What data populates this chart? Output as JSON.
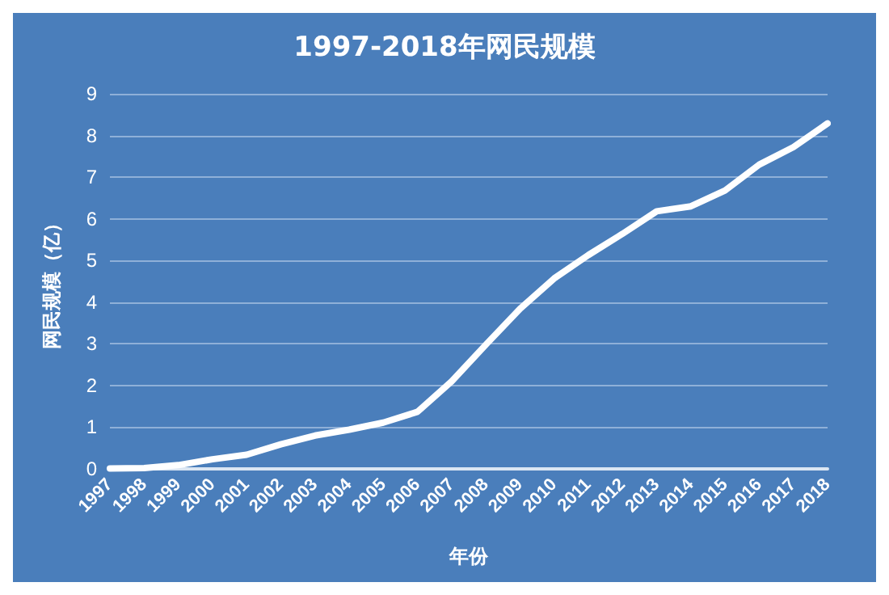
{
  "chart_data": {
    "type": "line",
    "title": "1997-2018年网民规模",
    "xlabel": "年份",
    "ylabel": "网民规模（亿）",
    "categories": [
      "1997",
      "1998",
      "1999",
      "2000",
      "2001",
      "2002",
      "2003",
      "2004",
      "2005",
      "2006",
      "2007",
      "2008",
      "2009",
      "2010",
      "2011",
      "2012",
      "2013",
      "2014",
      "2015",
      "2016",
      "2017",
      "2018"
    ],
    "series": [
      {
        "color": "#ffffff",
        "values": [
          0.01,
          0.02,
          0.09,
          0.23,
          0.34,
          0.59,
          0.8,
          0.94,
          1.11,
          1.37,
          2.1,
          2.98,
          3.84,
          4.57,
          5.13,
          5.64,
          6.18,
          6.3,
          6.68,
          7.3,
          7.72,
          8.29
        ]
      }
    ],
    "ylim": [
      0,
      9
    ],
    "yticks": [
      0,
      1,
      2,
      3,
      4,
      5,
      6,
      7,
      8,
      9
    ],
    "grid": "y",
    "marker": "none",
    "line_style": "solid"
  }
}
